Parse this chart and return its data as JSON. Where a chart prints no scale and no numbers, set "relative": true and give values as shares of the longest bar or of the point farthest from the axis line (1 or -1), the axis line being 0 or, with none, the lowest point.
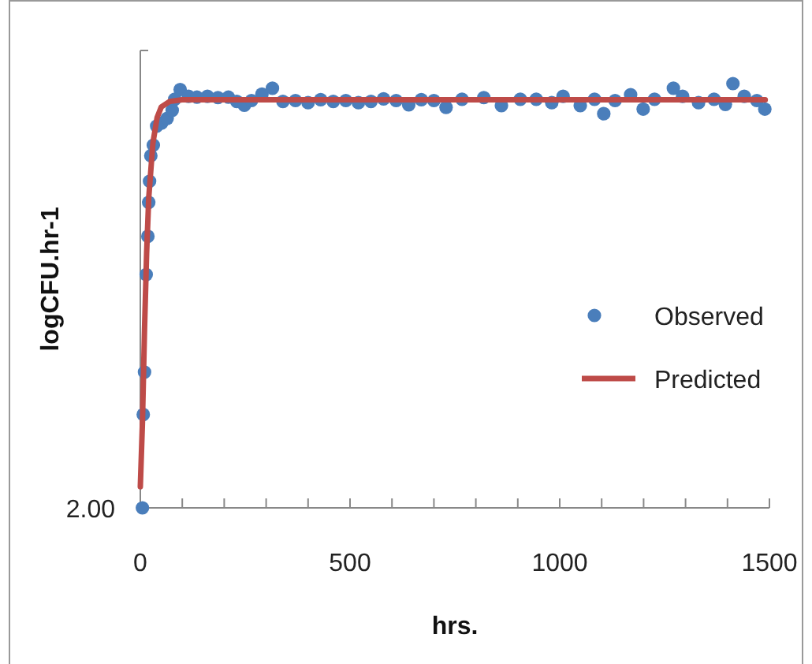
{
  "chart_data": {
    "type": "scatter",
    "xlabel": "hrs.",
    "ylabel": "logCFU.hr-1",
    "relative": true,
    "annotations": [
      "2.00"
    ],
    "xlim": [
      0,
      1500
    ],
    "xticks": [
      0,
      {
        "value": 100,
        "label": null
      },
      {
        "value": 200,
        "label": null
      },
      {
        "value": 300,
        "label": null
      },
      {
        "value": 400,
        "label": null
      },
      500,
      {
        "value": 600,
        "label": null
      },
      {
        "value": 700,
        "label": null
      },
      {
        "value": 800,
        "label": null
      },
      {
        "value": 900,
        "label": null
      },
      1000,
      {
        "value": 1100,
        "label": null
      },
      {
        "value": 1200,
        "label": null
      },
      {
        "value": 1300,
        "label": null
      },
      {
        "value": 1400,
        "label": null
      },
      1500
    ],
    "legend": "right",
    "grid": false,
    "series": [
      {
        "name": "Observed",
        "marker": "circle",
        "color": "#4a7ebb",
        "x": [
          5,
          7,
          10,
          14,
          18,
          20,
          22,
          25,
          31,
          39,
          51,
          64,
          76,
          82,
          95,
          115,
          135,
          160,
          185,
          210,
          230,
          248,
          265,
          290,
          315,
          340,
          370,
          400,
          430,
          460,
          490,
          520,
          550,
          580,
          610,
          640,
          670,
          700,
          729,
          767,
          819,
          861,
          906,
          944,
          981,
          1008,
          1049,
          1083,
          1105,
          1132,
          1169,
          1199,
          1226,
          1271,
          1293,
          1331,
          1368,
          1395,
          1413,
          1440,
          1470,
          1489
        ],
        "values": [
          0,
          0.22,
          0.32,
          0.55,
          0.64,
          0.72,
          0.77,
          0.83,
          0.855,
          0.9,
          0.907,
          0.918,
          0.937,
          0.963,
          0.986,
          0.97,
          0.968,
          0.97,
          0.967,
          0.968,
          0.958,
          0.949,
          0.96,
          0.975,
          0.989,
          0.958,
          0.96,
          0.955,
          0.962,
          0.958,
          0.96,
          0.955,
          0.958,
          0.964,
          0.96,
          0.95,
          0.962,
          0.96,
          0.944,
          0.963,
          0.967,
          0.948,
          0.963,
          0.963,
          0.955,
          0.97,
          0.948,
          0.963,
          0.929,
          0.96,
          0.974,
          0.94,
          0.963,
          0.989,
          0.97,
          0.955,
          0.963,
          0.951,
          1,
          0.97,
          0.96,
          0.94
        ]
      },
      {
        "name": "Predicted",
        "type": "line",
        "marker": "none",
        "line_style": "solid",
        "color": "#be4b48",
        "x": [
          0,
          5,
          10,
          15,
          20,
          30,
          40,
          50,
          70,
          100,
          1490
        ],
        "values": [
          0.05,
          0.2,
          0.42,
          0.6,
          0.73,
          0.86,
          0.92,
          0.945,
          0.958,
          0.962,
          0.962
        ]
      }
    ]
  }
}
